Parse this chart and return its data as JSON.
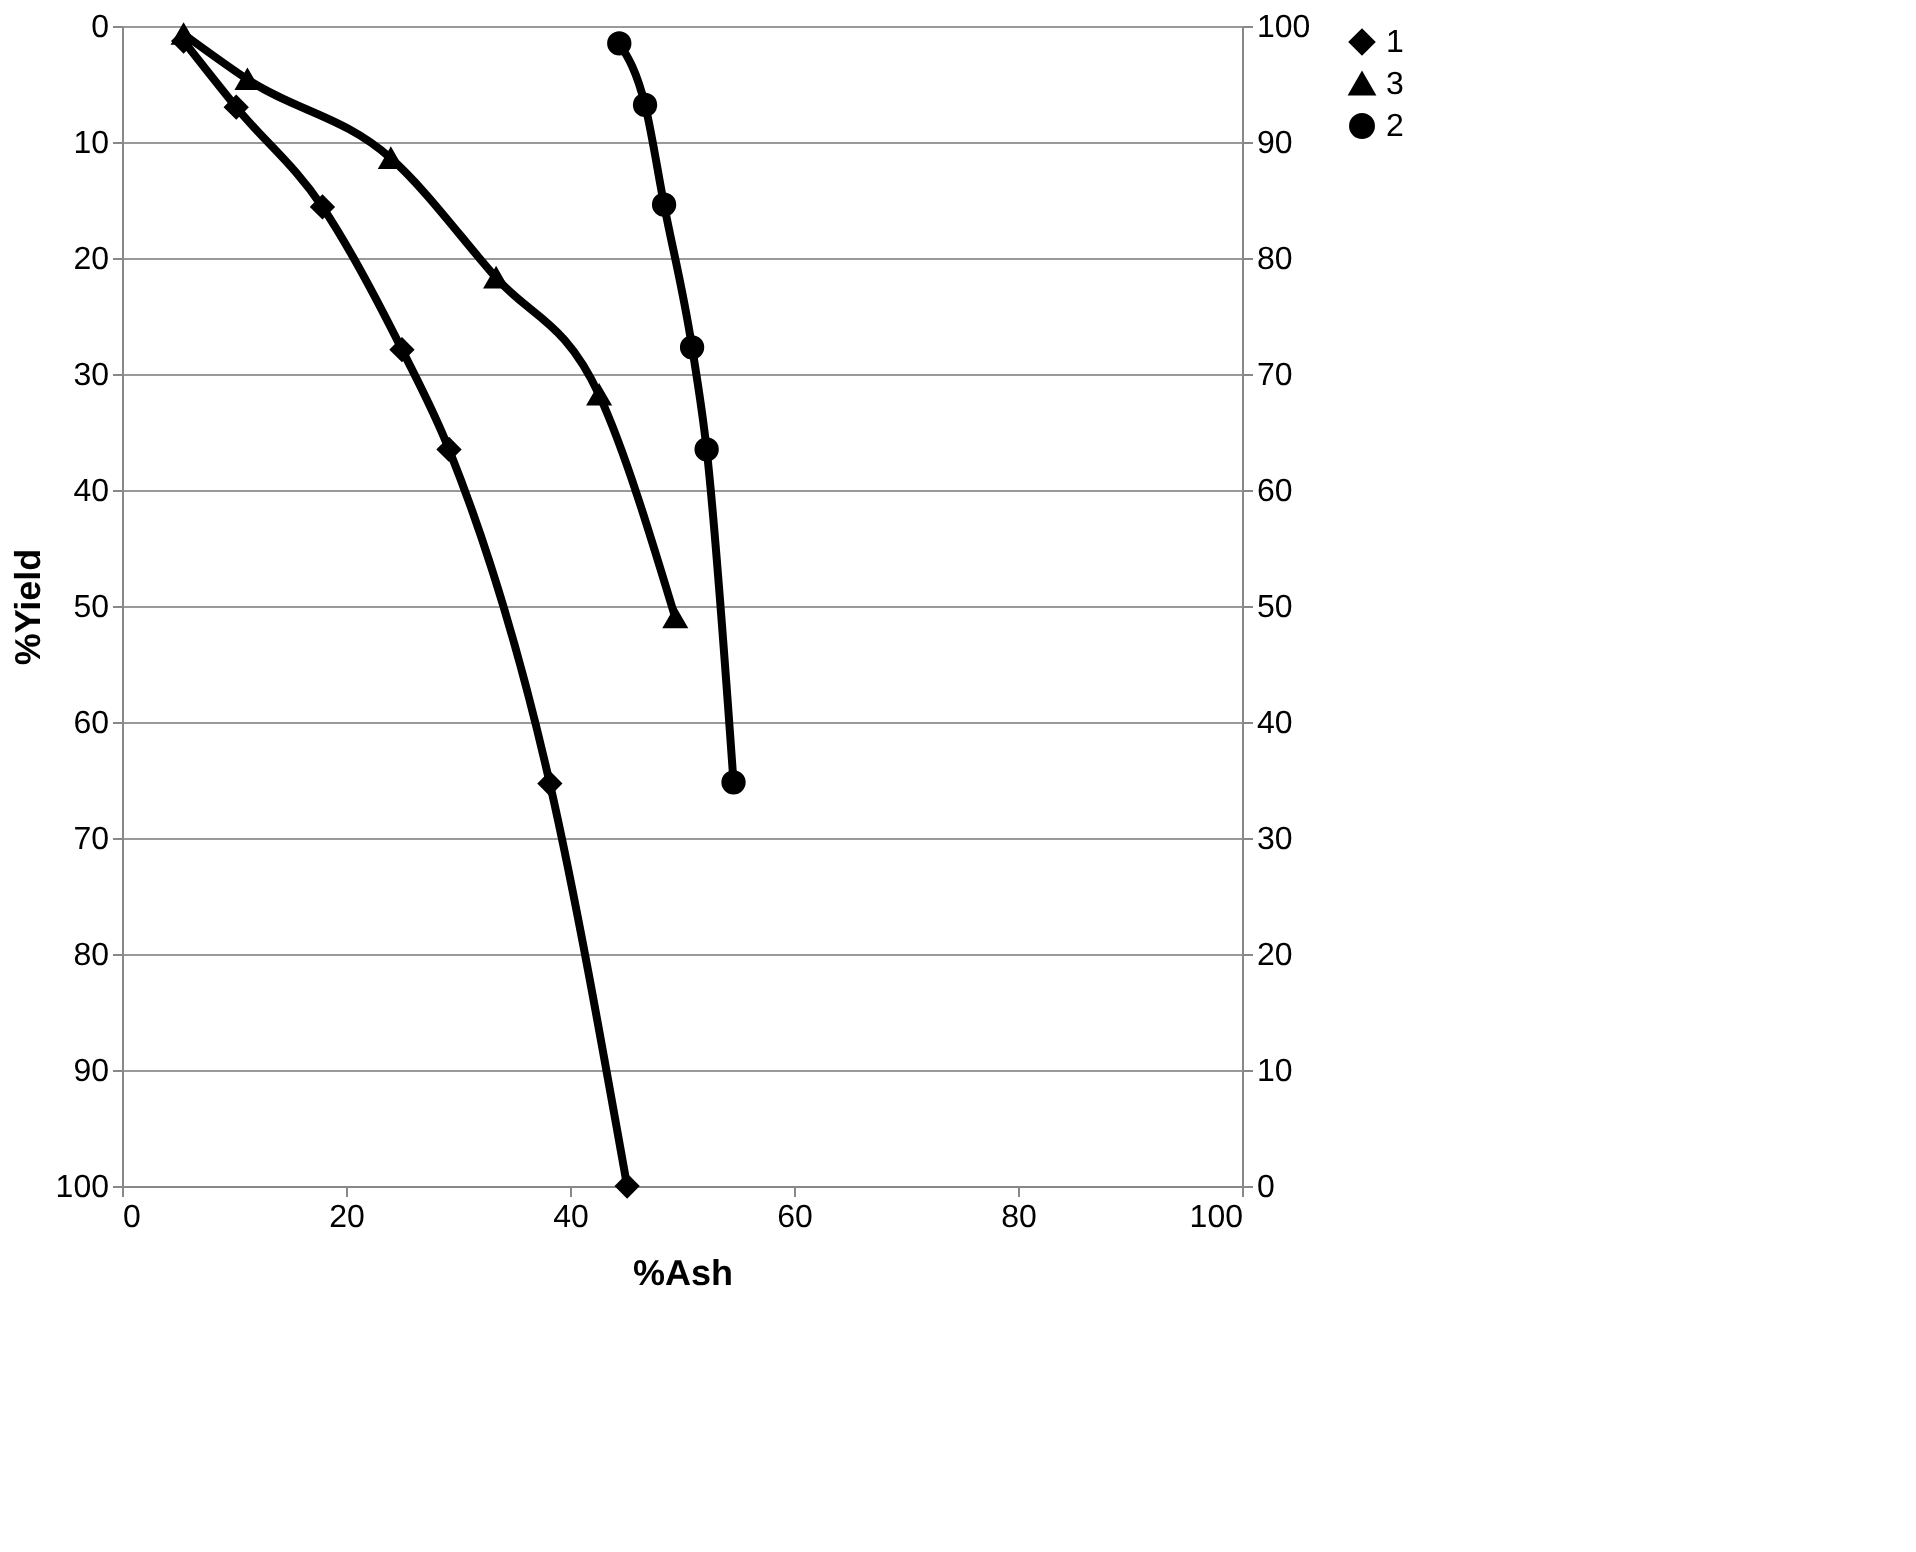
{
  "chart_data": {
    "type": "line",
    "xlabel": "%Ash",
    "ylabel": "%Yield",
    "xlim": [
      0,
      100
    ],
    "xticks": [
      0,
      20,
      40,
      60,
      80,
      100
    ],
    "ylim": [
      100,
      0
    ],
    "yticks": [
      0,
      10,
      20,
      30,
      40,
      50,
      60,
      70,
      80,
      90,
      100
    ],
    "y2lim": [
      0,
      100
    ],
    "y2ticks": [
      0,
      10,
      20,
      30,
      40,
      50,
      60,
      70,
      80,
      90,
      100
    ],
    "grid": "y",
    "legend": "right",
    "line_style": "solid",
    "series": [
      {
        "name": "1",
        "color": "#000000",
        "marker": "diamond",
        "x": [
          5.5,
          10.2,
          17.9,
          25,
          29.2,
          38.2,
          45.1
        ],
        "values": [
          1.3,
          7,
          15.6,
          27.9,
          36.5,
          65.3,
          100
        ]
      },
      {
        "name": "3",
        "color": "#000000",
        "marker": "triangle",
        "x": [
          5.5,
          11.2,
          24,
          33.4,
          42.6,
          49.4
        ],
        "values": [
          0.7,
          4.6,
          11.4,
          21.7,
          31.8,
          51
        ]
      },
      {
        "name": "2",
        "color": "#000000",
        "marker": "circle",
        "axis": "y2",
        "x": [
          44.4,
          46.7,
          48.4,
          50.9,
          52.2,
          54.6
        ],
        "values": [
          98.5,
          93.2,
          84.6,
          72.3,
          63.5,
          34.8
        ]
      }
    ]
  }
}
